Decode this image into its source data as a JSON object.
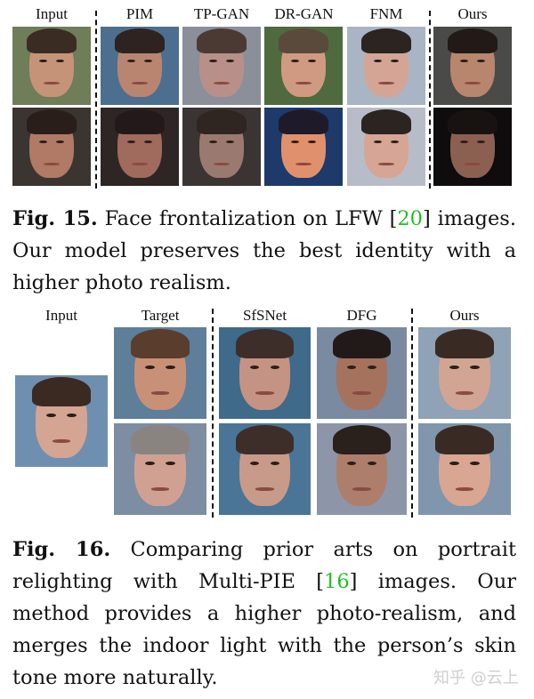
{
  "figure15": {
    "column_headers": [
      "Input",
      "PIM",
      "TP-GAN",
      "DR-GAN",
      "FNM",
      "Ours"
    ],
    "rows": 2,
    "images": [
      [
        {
          "name": "input-row1",
          "bg": "#6f7d58",
          "skin": "#c59478",
          "hair": "#3a2c22"
        },
        {
          "name": "pim-row1",
          "bg": "#4d6f8f",
          "skin": "#b98570",
          "hair": "#2e2320"
        },
        {
          "name": "tpgan-row1",
          "bg": "#8a8f9a",
          "skin": "#b89089",
          "hair": "#4b3a34"
        },
        {
          "name": "drgan-row1",
          "bg": "#4f6a3e",
          "skin": "#d09a82",
          "hair": "#5a4a3b"
        },
        {
          "name": "fnm-row1",
          "bg": "#a9b4c5",
          "skin": "#d4a595",
          "hair": "#2b2420"
        },
        {
          "name": "ours-row1",
          "bg": "#4a4a48",
          "skin": "#b8866c",
          "hair": "#211a16"
        }
      ],
      [
        {
          "name": "input-row2",
          "bg": "#3a3530",
          "skin": "#b07a66",
          "hair": "#2a1e1a"
        },
        {
          "name": "pim-row2",
          "bg": "#2e2624",
          "skin": "#a06a5c",
          "hair": "#24191a"
        },
        {
          "name": "tpgan-row2",
          "bg": "#3a3432",
          "skin": "#9a7a70",
          "hair": "#2f2622"
        },
        {
          "name": "drgan-row2",
          "bg": "#1d3a6a",
          "skin": "#e0916c",
          "hair": "#1f1a2a"
        },
        {
          "name": "fnm-row2",
          "bg": "#b7bcc8",
          "skin": "#d6a594",
          "hair": "#2b2420"
        },
        {
          "name": "ours-row2",
          "bg": "#0e0c0c",
          "skin": "#8c6050",
          "hair": "#181210"
        }
      ]
    ],
    "caption": {
      "label": "Fig. 15.",
      "text_before_cite": " Face frontalization on LFW [",
      "cite": "20",
      "text_after_cite": "] images. Our model preserves the best identity with a higher photo realism."
    }
  },
  "figure16": {
    "column_headers": [
      "Input",
      "Target",
      "SfSNet",
      "DFG",
      "Ours"
    ],
    "input_image": {
      "name": "input",
      "bg": "#6f8fb0",
      "skin": "#d4a592",
      "hair": "#3a2a22"
    },
    "images": [
      [
        {
          "name": "target-row1",
          "bg": "#5d7f9a",
          "skin": "#c99078",
          "hair": "#5a3d2c"
        },
        {
          "name": "sfsnet-row1",
          "bg": "#3f6a8a",
          "skin": "#c59383",
          "hair": "#3d2e2a"
        },
        {
          "name": "dfg-row1",
          "bg": "#7a8aa0",
          "skin": "#a5725e",
          "hair": "#221a18"
        },
        {
          "name": "ours-row1",
          "bg": "#8fa2b6",
          "skin": "#d1a494",
          "hair": "#3a2a24"
        }
      ],
      [
        {
          "name": "target-row2",
          "bg": "#7d8da2",
          "skin": "#d0a192",
          "hair": "#8a8480"
        },
        {
          "name": "sfsnet-row2",
          "bg": "#4a7596",
          "skin": "#c89a8a",
          "hair": "#3d2e2a"
        },
        {
          "name": "dfg-row2",
          "bg": "#8c96a8",
          "skin": "#ae7e6c",
          "hair": "#2a201c"
        },
        {
          "name": "ours-row2",
          "bg": "#7f96ac",
          "skin": "#d8a692",
          "hair": "#3a2a24"
        }
      ]
    ],
    "caption": {
      "label": "Fig. 16.",
      "text_before_cite": " Comparing prior arts on portrait relighting with Multi-PIE [",
      "cite": "16",
      "text_after_cite": "] images. Our method provides a higher photo-realism, and merges the indoor light with the person’s skin tone more naturally."
    }
  },
  "watermark": "知乎 @云上"
}
